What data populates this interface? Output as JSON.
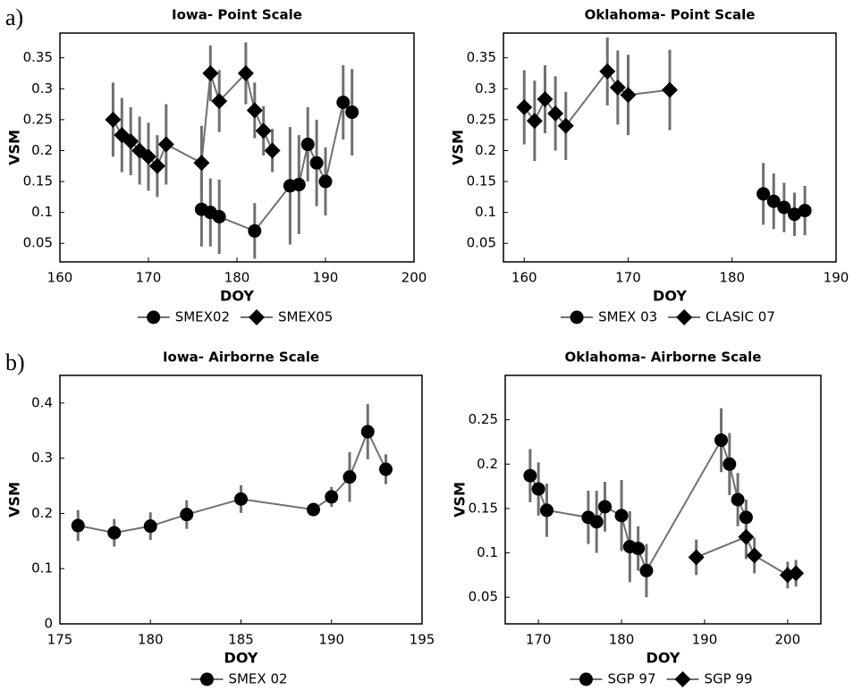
{
  "panel_labels": [
    "a)",
    "b)"
  ],
  "chart_data": [
    {
      "type": "line",
      "title": "Iowa- Point Scale",
      "x_label": "DOY",
      "y_label": "VSM",
      "xlim": [
        160,
        200
      ],
      "xticks": [
        160,
        170,
        180,
        190,
        200
      ],
      "ylim": [
        0.02,
        0.39
      ],
      "yticks": [
        0.05,
        0.1,
        0.15,
        0.2,
        0.25,
        0.3,
        0.35
      ],
      "line_color": "#707070",
      "error_color": "#707070",
      "series": [
        {
          "name": "SMEX02",
          "marker": "circle",
          "color": "#000000",
          "x": [
            176,
            177,
            178,
            182,
            186,
            187,
            188,
            189,
            190,
            192,
            193
          ],
          "values": [
            0.105,
            0.1,
            0.093,
            0.07,
            0.143,
            0.145,
            0.21,
            0.18,
            0.15,
            0.278,
            0.262
          ],
          "errors": [
            0.06,
            0.055,
            0.06,
            0.045,
            0.095,
            0.08,
            0.06,
            0.07,
            0.055,
            0.06,
            0.07
          ]
        },
        {
          "name": "SMEX05",
          "marker": "diamond",
          "color": "#000000",
          "x": [
            166,
            167,
            168,
            169,
            170,
            171,
            172,
            176,
            177,
            178,
            181,
            182,
            183,
            184
          ],
          "values": [
            0.25,
            0.225,
            0.215,
            0.2,
            0.19,
            0.175,
            0.21,
            0.18,
            0.325,
            0.28,
            0.325,
            0.265,
            0.232,
            0.2
          ],
          "errors": [
            0.06,
            0.06,
            0.055,
            0.055,
            0.055,
            0.05,
            0.065,
            0.06,
            0.045,
            0.05,
            0.05,
            0.045,
            0.04,
            0.035
          ]
        }
      ]
    },
    {
      "type": "line",
      "title": "Oklahoma- Point Scale",
      "x_label": "DOY",
      "y_label": "VSM",
      "xlim": [
        158,
        190
      ],
      "xticks": [
        160,
        170,
        180,
        190
      ],
      "ylim": [
        0.02,
        0.39
      ],
      "yticks": [
        0.05,
        0.1,
        0.15,
        0.2,
        0.25,
        0.3,
        0.35
      ],
      "line_color": "#707070",
      "error_color": "#707070",
      "series": [
        {
          "name": "SMEX 03",
          "marker": "circle",
          "color": "#000000",
          "x": [
            183,
            184,
            185,
            186,
            187
          ],
          "values": [
            0.13,
            0.118,
            0.108,
            0.097,
            0.103
          ],
          "errors": [
            0.05,
            0.045,
            0.04,
            0.035,
            0.04
          ]
        },
        {
          "name": "CLASIC 07",
          "marker": "diamond",
          "color": "#000000",
          "x": [
            160,
            161,
            162,
            163,
            164,
            168,
            169,
            170,
            174
          ],
          "values": [
            0.27,
            0.248,
            0.283,
            0.26,
            0.24,
            0.328,
            0.302,
            0.29,
            0.298
          ],
          "errors": [
            0.06,
            0.065,
            0.055,
            0.06,
            0.055,
            0.055,
            0.06,
            0.065,
            0.065
          ]
        }
      ]
    },
    {
      "type": "line",
      "title": "Iowa- Airborne Scale",
      "x_label": "DOY",
      "y_label": "VSM",
      "xlim": [
        175,
        195
      ],
      "xticks": [
        175,
        180,
        185,
        190,
        195
      ],
      "ylim": [
        0,
        0.45
      ],
      "yticks": [
        0,
        0.1,
        0.2,
        0.3,
        0.4
      ],
      "line_color": "#707070",
      "error_color": "#707070",
      "series": [
        {
          "name": "SMEX 02",
          "marker": "circle",
          "color": "#000000",
          "x": [
            176,
            178,
            180,
            182,
            185,
            189,
            190,
            191,
            192,
            193
          ],
          "values": [
            0.178,
            0.165,
            0.177,
            0.198,
            0.226,
            0.207,
            0.23,
            0.266,
            0.348,
            0.28
          ],
          "errors": [
            0.028,
            0.025,
            0.025,
            0.026,
            0.025,
            0.012,
            0.018,
            0.045,
            0.05,
            0.027
          ]
        }
      ]
    },
    {
      "type": "line",
      "title": "Oklahoma- Airborne Scale",
      "x_label": "DOY",
      "y_label": "VSM",
      "xlim": [
        166,
        204
      ],
      "xticks": [
        170,
        180,
        190,
        200
      ],
      "ylim": [
        0.02,
        0.3
      ],
      "yticks": [
        0.05,
        0.1,
        0.15,
        0.2,
        0.25
      ],
      "line_color": "#707070",
      "error_color": "#707070",
      "series": [
        {
          "name": "SGP 97",
          "marker": "circle",
          "color": "#000000",
          "x": [
            169,
            170,
            171,
            176,
            177,
            178,
            180,
            181,
            182,
            183,
            192,
            193,
            194,
            195
          ],
          "values": [
            0.187,
            0.172,
            0.148,
            0.14,
            0.135,
            0.152,
            0.142,
            0.107,
            0.105,
            0.08,
            0.227,
            0.2,
            0.16,
            0.14
          ],
          "errors": [
            0.03,
            0.03,
            0.03,
            0.03,
            0.035,
            0.028,
            0.04,
            0.04,
            0.025,
            0.03,
            0.036,
            0.035,
            0.03,
            0.02
          ]
        },
        {
          "name": "SGP 99",
          "marker": "diamond",
          "color": "#000000",
          "x": [
            189,
            195,
            196,
            200,
            201
          ],
          "values": [
            0.095,
            0.118,
            0.097,
            0.075,
            0.077
          ],
          "errors": [
            0.02,
            0.025,
            0.02,
            0.015,
            0.015
          ]
        }
      ]
    }
  ]
}
